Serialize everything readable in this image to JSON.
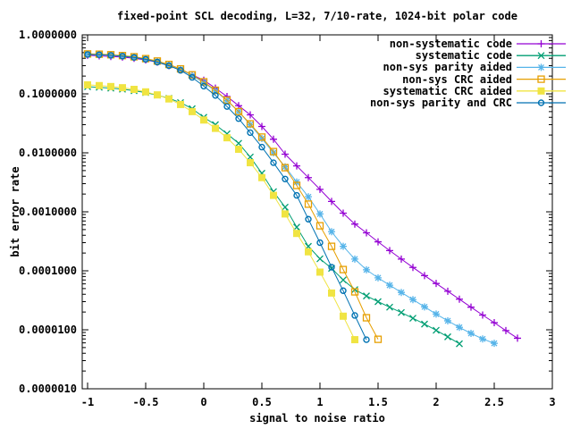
{
  "title": "fixed-point SCL decoding, L=32, 7/10-rate, 1024-bit polar code",
  "axes": {
    "xlabel": "signal to noise ratio",
    "ylabel": "bit error rate"
  },
  "chart_data": {
    "type": "line",
    "title": "fixed-point SCL decoding, L=32, 7/10-rate, 1024-bit polar code",
    "xlabel": "signal to noise ratio",
    "ylabel": "bit error rate",
    "x_axis": {
      "scale": "linear",
      "range": [
        -1.05,
        3.0
      ],
      "ticks": [
        -1,
        -0.5,
        0,
        0.5,
        1,
        1.5,
        2,
        2.5,
        3
      ],
      "tick_labels": [
        "-1",
        "-0.5",
        "0",
        "0.5",
        "1",
        "1.5",
        "2",
        "2.5",
        "3"
      ]
    },
    "y_axis": {
      "scale": "log",
      "range": [
        1e-06,
        1.0
      ],
      "tick_labels": [
        "1.0000000",
        "0.1000000",
        "0.0100000",
        "0.0010000",
        "0.0001000",
        "0.0000100",
        "0.0000010"
      ],
      "tick_values": [
        1,
        0.1,
        0.01,
        0.001,
        0.0001,
        1e-05,
        1e-06
      ]
    },
    "grid": false,
    "legend_position": "top-right",
    "series": [
      {
        "name": "non-systematic code",
        "color": "#9400d3",
        "marker": "plus",
        "x": [
          -1,
          -0.9,
          -0.8,
          -0.7,
          -0.6,
          -0.5,
          -0.4,
          -0.3,
          -0.2,
          -0.1,
          0,
          0.1,
          0.2,
          0.3,
          0.4,
          0.5,
          0.6,
          0.7,
          0.8,
          0.9,
          1,
          1.1,
          1.2,
          1.3,
          1.4,
          1.5,
          1.6,
          1.7,
          1.8,
          1.9,
          2,
          2.1,
          2.2,
          2.3,
          2.4,
          2.5,
          2.6,
          2.7
        ],
        "y": [
          0.45,
          0.44,
          0.43,
          0.42,
          0.4,
          0.375,
          0.345,
          0.3,
          0.255,
          0.21,
          0.17,
          0.125,
          0.09,
          0.063,
          0.044,
          0.028,
          0.017,
          0.0095,
          0.006,
          0.0038,
          0.0024,
          0.0015,
          0.00095,
          0.00062,
          0.00044,
          0.00031,
          0.00022,
          0.000158,
          0.000114,
          8.3e-05,
          6.1e-05,
          4.5e-05,
          3.3e-05,
          2.42e-05,
          1.78e-05,
          1.32e-05,
          9.7e-06,
          7.2e-06
        ]
      },
      {
        "name": "systematic code",
        "color": "#009e73",
        "marker": "cross",
        "x": [
          -1,
          -0.9,
          -0.8,
          -0.7,
          -0.6,
          -0.5,
          -0.4,
          -0.3,
          -0.2,
          -0.1,
          0,
          0.1,
          0.2,
          0.3,
          0.4,
          0.5,
          0.6,
          0.7,
          0.8,
          0.9,
          1,
          1.1,
          1.2,
          1.3,
          1.4,
          1.5,
          1.6,
          1.7,
          1.8,
          1.9,
          2,
          2.1,
          2.2
        ],
        "y": [
          0.132,
          0.129,
          0.125,
          0.12,
          0.113,
          0.105,
          0.095,
          0.084,
          0.071,
          0.056,
          0.04,
          0.03,
          0.021,
          0.0145,
          0.0085,
          0.0045,
          0.0022,
          0.0012,
          0.00055,
          0.00026,
          0.00016,
          0.00011,
          7e-05,
          4.8e-05,
          3.75e-05,
          3e-05,
          2.42e-05,
          1.96e-05,
          1.57e-05,
          1.25e-05,
          9.8e-06,
          7.6e-06,
          5.8e-06
        ]
      },
      {
        "name": "non-sys parity aided",
        "color": "#56b4e9",
        "marker": "asterisk",
        "x": [
          -1,
          -0.9,
          -0.8,
          -0.7,
          -0.6,
          -0.5,
          -0.4,
          -0.3,
          -0.2,
          -0.1,
          0,
          0.1,
          0.2,
          0.3,
          0.4,
          0.5,
          0.6,
          0.7,
          0.8,
          0.9,
          1,
          1.1,
          1.2,
          1.3,
          1.4,
          1.5,
          1.6,
          1.7,
          1.8,
          1.9,
          2,
          2.1,
          2.2,
          2.3,
          2.4,
          2.5
        ],
        "y": [
          0.47,
          0.465,
          0.455,
          0.44,
          0.42,
          0.39,
          0.355,
          0.31,
          0.26,
          0.205,
          0.155,
          0.112,
          0.077,
          0.05,
          0.03,
          0.0175,
          0.01,
          0.0058,
          0.0032,
          0.0018,
          0.00092,
          0.00046,
          0.00026,
          0.000158,
          0.000104,
          7.6e-05,
          5.7e-05,
          4.3e-05,
          3.25e-05,
          2.45e-05,
          1.85e-05,
          1.42e-05,
          1.1e-05,
          8.7e-06,
          7e-06,
          5.9e-06
        ]
      },
      {
        "name": "non-sys CRC aided",
        "color": "#e69f00",
        "marker": "square-open",
        "x": [
          -1,
          -0.9,
          -0.8,
          -0.7,
          -0.6,
          -0.5,
          -0.4,
          -0.3,
          -0.2,
          -0.1,
          0,
          0.1,
          0.2,
          0.3,
          0.4,
          0.5,
          0.6,
          0.7,
          0.8,
          0.9,
          1,
          1.1,
          1.2,
          1.3,
          1.4,
          1.5
        ],
        "y": [
          0.475,
          0.47,
          0.46,
          0.445,
          0.425,
          0.395,
          0.36,
          0.315,
          0.265,
          0.21,
          0.16,
          0.115,
          0.078,
          0.05,
          0.031,
          0.0185,
          0.0105,
          0.0056,
          0.0028,
          0.00135,
          0.00058,
          0.00026,
          0.000105,
          4.4e-05,
          1.6e-05,
          6.9e-06
        ]
      },
      {
        "name": "systematic CRC aided",
        "color": "#f0e442",
        "marker": "square-filled",
        "x": [
          -1,
          -0.9,
          -0.8,
          -0.7,
          -0.6,
          -0.5,
          -0.4,
          -0.3,
          -0.2,
          -0.1,
          0,
          0.1,
          0.2,
          0.3,
          0.4,
          0.5,
          0.6,
          0.7,
          0.8,
          0.9,
          1,
          1.1,
          1.2,
          1.3
        ],
        "y": [
          0.142,
          0.138,
          0.133,
          0.127,
          0.119,
          0.108,
          0.096,
          0.082,
          0.066,
          0.05,
          0.036,
          0.026,
          0.018,
          0.0115,
          0.0068,
          0.0038,
          0.0019,
          0.00092,
          0.00043,
          0.00021,
          9.5e-05,
          4.2e-05,
          1.7e-05,
          6.8e-06
        ]
      },
      {
        "name": "non-sys parity and CRC",
        "color": "#0072b2",
        "marker": "circle-open",
        "x": [
          -1,
          -0.9,
          -0.8,
          -0.7,
          -0.6,
          -0.5,
          -0.4,
          -0.3,
          -0.2,
          -0.1,
          0,
          0.1,
          0.2,
          0.3,
          0.4,
          0.5,
          0.6,
          0.7,
          0.8,
          0.9,
          1,
          1.1,
          1.2,
          1.3,
          1.4
        ],
        "y": [
          0.465,
          0.46,
          0.45,
          0.435,
          0.415,
          0.385,
          0.345,
          0.3,
          0.25,
          0.19,
          0.135,
          0.094,
          0.061,
          0.038,
          0.022,
          0.0125,
          0.0068,
          0.0036,
          0.0019,
          0.00075,
          0.0003,
          0.000115,
          4.6e-05,
          1.75e-05,
          6.8e-06
        ]
      }
    ]
  }
}
